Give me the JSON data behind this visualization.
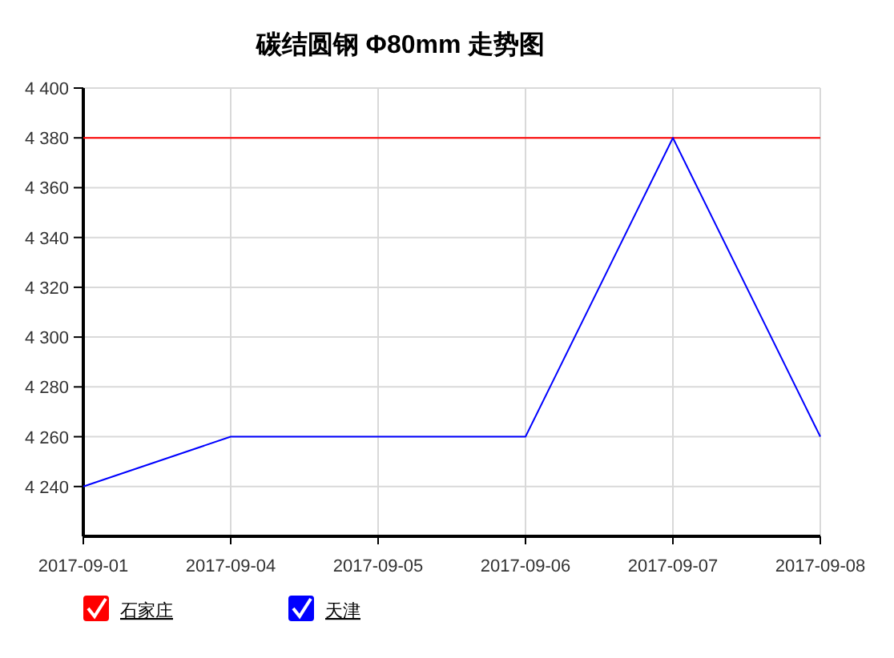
{
  "chart_data": {
    "type": "line",
    "title": "碳结圆钢 Φ80mm 走势图",
    "categories": [
      "2017-09-01",
      "2017-09-04",
      "2017-09-05",
      "2017-09-06",
      "2017-09-07",
      "2017-09-08"
    ],
    "series": [
      {
        "name": "石家庄",
        "color": "#ff0000",
        "values": [
          4380,
          4380,
          4380,
          4380,
          4380,
          4380
        ]
      },
      {
        "name": "天津",
        "color": "#0000ff",
        "values": [
          4240,
          4260,
          4260,
          4260,
          4380,
          4260
        ]
      }
    ],
    "ylim": [
      4220,
      4400
    ],
    "yticks": [
      {
        "value": 4240,
        "label": "4 240"
      },
      {
        "value": 4260,
        "label": "4 260"
      },
      {
        "value": 4280,
        "label": "4 280"
      },
      {
        "value": 4300,
        "label": "4 300"
      },
      {
        "value": 4320,
        "label": "4 320"
      },
      {
        "value": 4340,
        "label": "4 340"
      },
      {
        "value": 4360,
        "label": "4 360"
      },
      {
        "value": 4380,
        "label": "4 380"
      },
      {
        "value": 4400,
        "label": "4 400"
      }
    ],
    "grid": true,
    "legend": "bottom",
    "marker": "none",
    "line_style": "solid"
  }
}
